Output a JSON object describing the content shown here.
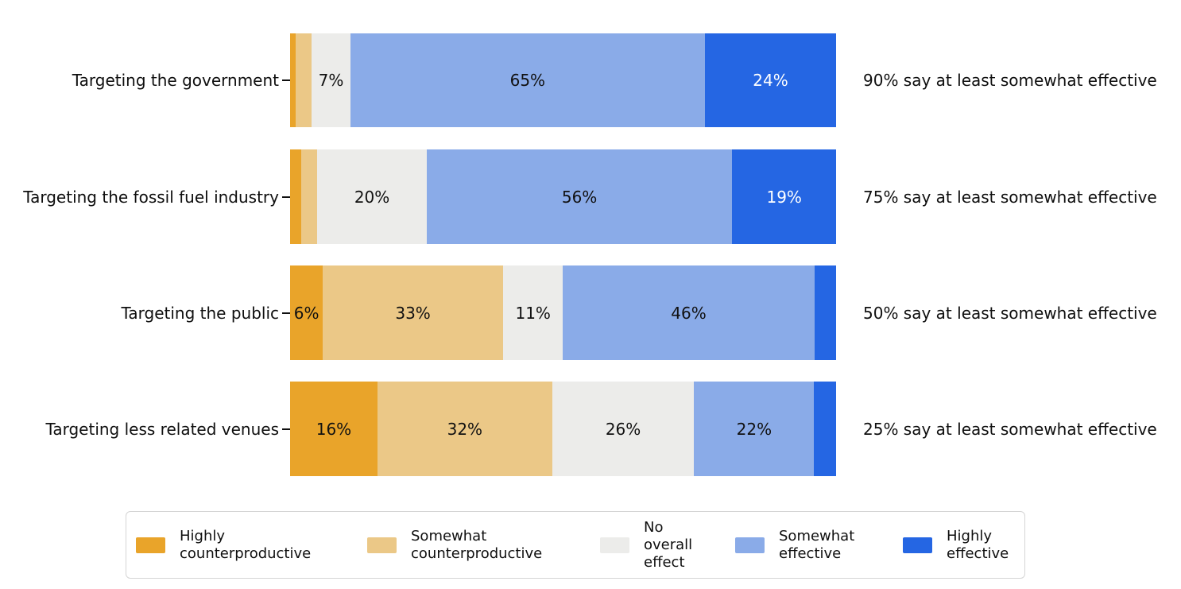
{
  "chart_data": {
    "type": "bar",
    "orientation": "horizontal",
    "stacked": true,
    "unit": "percent",
    "xlim": [
      0,
      100
    ],
    "grid": false,
    "legend_position": "bottom",
    "series_names": [
      "Highly counterproductive",
      "Somewhat counterproductive",
      "No overall effect",
      "Somewhat effective",
      "Highly effective"
    ],
    "rows": [
      {
        "category": "Targeting the government",
        "annotation": "90% say at least somewhat effective",
        "segments": [
          {
            "series": "Highly counterproductive",
            "value": 1,
            "label": ""
          },
          {
            "series": "Somewhat counterproductive",
            "value": 3,
            "label": ""
          },
          {
            "series": "No overall effect",
            "value": 7,
            "label": "7%"
          },
          {
            "series": "Somewhat effective",
            "value": 65,
            "label": "65%"
          },
          {
            "series": "Highly effective",
            "value": 24,
            "label": "24%",
            "text_color": "#ffffff"
          }
        ]
      },
      {
        "category": "Targeting the fossil fuel industry",
        "annotation": "75% say at least somewhat effective",
        "segments": [
          {
            "series": "Highly counterproductive",
            "value": 2,
            "label": ""
          },
          {
            "series": "Somewhat counterproductive",
            "value": 3,
            "label": ""
          },
          {
            "series": "No overall effect",
            "value": 20,
            "label": "20%"
          },
          {
            "series": "Somewhat effective",
            "value": 56,
            "label": "56%"
          },
          {
            "series": "Highly effective",
            "value": 19,
            "label": "19%",
            "text_color": "#ffffff"
          }
        ]
      },
      {
        "category": "Targeting the public",
        "annotation": "50% say at least somewhat effective",
        "segments": [
          {
            "series": "Highly counterproductive",
            "value": 6,
            "label": "6%"
          },
          {
            "series": "Somewhat counterproductive",
            "value": 33,
            "label": "33%"
          },
          {
            "series": "No overall effect",
            "value": 11,
            "label": "11%"
          },
          {
            "series": "Somewhat effective",
            "value": 46,
            "label": "46%"
          },
          {
            "series": "Highly effective",
            "value": 4,
            "label": ""
          }
        ]
      },
      {
        "category": "Targeting less related venues",
        "annotation": "25% say at least somewhat effective",
        "segments": [
          {
            "series": "Highly counterproductive",
            "value": 16,
            "label": "16%"
          },
          {
            "series": "Somewhat counterproductive",
            "value": 32,
            "label": "32%"
          },
          {
            "series": "No overall effect",
            "value": 26,
            "label": "26%"
          },
          {
            "series": "Somewhat effective",
            "value": 22,
            "label": "22%"
          },
          {
            "series": "Highly effective",
            "value": 4,
            "label": ""
          }
        ]
      }
    ]
  },
  "colors": {
    "Highly counterproductive": "#E9A42A",
    "Somewhat counterproductive": "#EBC887",
    "No overall effect": "#ECECEA",
    "Somewhat effective": "#8AABE8",
    "Highly effective": "#2566E3",
    "bar_label_default": "#111111",
    "legend_border": "#d5d5d5"
  },
  "legend": {
    "items": [
      {
        "label": "Highly\ncounterproductive",
        "color": "#E9A42A"
      },
      {
        "label": "Somewhat\ncounterproductive",
        "color": "#EBC887"
      },
      {
        "label": "No\noverall\neffect",
        "color": "#ECECEA"
      },
      {
        "label": "Somewhat\neffective",
        "color": "#8AABE8"
      },
      {
        "label": "Highly\neffective",
        "color": "#2566E3"
      }
    ]
  }
}
